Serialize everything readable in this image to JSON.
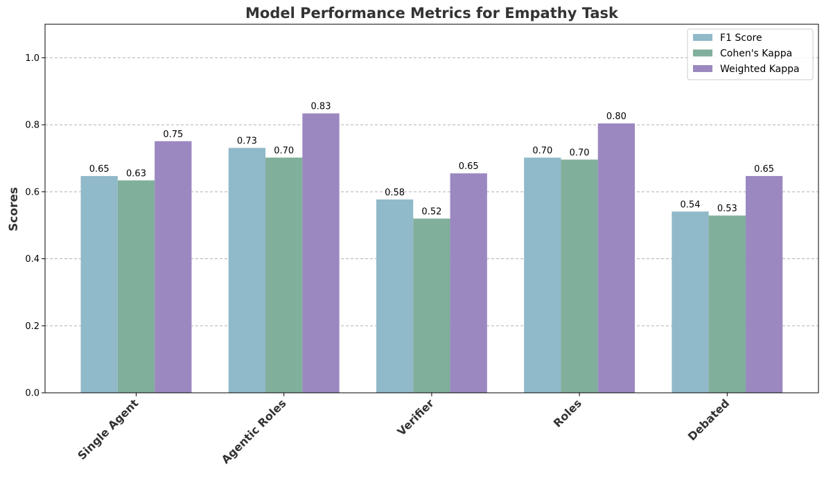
{
  "chart_data": {
    "type": "bar",
    "title": "Model Performance Metrics for Empathy Task",
    "xlabel": "",
    "ylabel": "Scores",
    "ylim": [
      0,
      1.1
    ],
    "yticks": [
      "0.0",
      "0.2",
      "0.4",
      "0.6",
      "0.8",
      "1.0"
    ],
    "grid": "horizontal dashed",
    "legend_position": "top-right",
    "categories": [
      "Single Agent",
      "Agentic Roles",
      "Verifier",
      "Roles",
      "Debated"
    ],
    "series": [
      {
        "name": "F1 Score",
        "color": "#90b9c9",
        "values": [
          0.647,
          0.731,
          0.577,
          0.702,
          0.541
        ],
        "labels": [
          "0.65",
          "0.73",
          "0.58",
          "0.70",
          "0.54"
        ]
      },
      {
        "name": "Cohen's Kappa",
        "color": "#80af9b",
        "values": [
          0.634,
          0.702,
          0.52,
          0.696,
          0.529
        ],
        "labels": [
          "0.63",
          "0.70",
          "0.52",
          "0.70",
          "0.53"
        ]
      },
      {
        "name": "Weighted Kappa",
        "color": "#9b88c1",
        "values": [
          0.751,
          0.834,
          0.655,
          0.804,
          0.647
        ],
        "labels": [
          "0.75",
          "0.83",
          "0.65",
          "0.80",
          "0.65"
        ]
      }
    ]
  }
}
